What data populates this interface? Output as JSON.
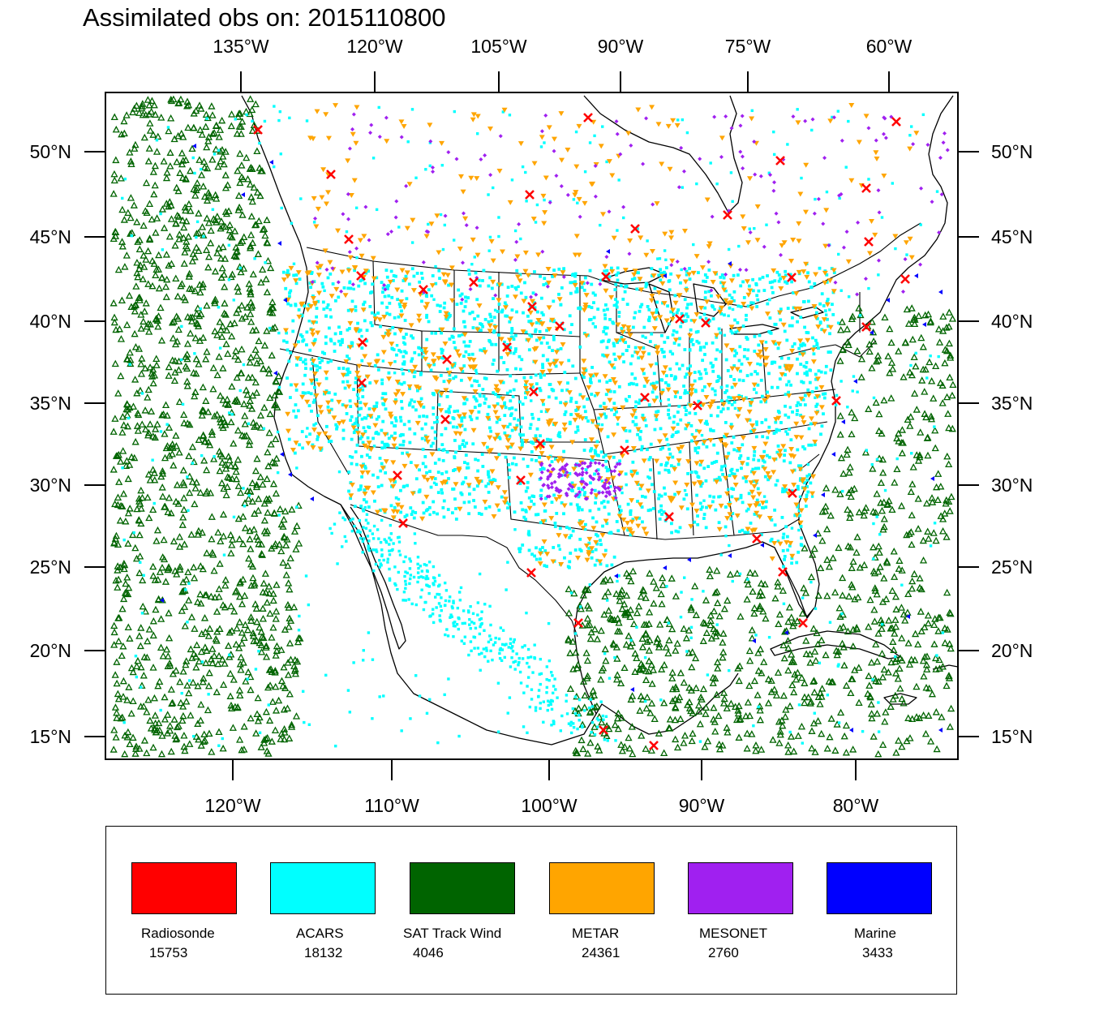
{
  "title": "Assimilated obs on: 2015110800",
  "axes": {
    "top_lon_labels": [
      "135°W",
      "120°W",
      "105°W",
      "90°W",
      "75°W",
      "60°W"
    ],
    "bottom_lon_labels": [
      "120°W",
      "110°W",
      "100°W",
      "90°W",
      "80°W"
    ],
    "lat_labels": [
      "50°N",
      "45°N",
      "40°N",
      "35°N",
      "30°N",
      "25°N",
      "20°N",
      "15°N"
    ]
  },
  "legend": [
    {
      "name": "Radiosonde",
      "count": "15753",
      "color": "#ff0000"
    },
    {
      "name": "ACARS",
      "count": "18132",
      "color": "#00ffff"
    },
    {
      "name": "SAT Track Wind",
      "count": "4046",
      "color": "#006400"
    },
    {
      "name": "METAR",
      "count": "24361",
      "color": "#ffa500"
    },
    {
      "name": "MESONET",
      "count": "2760",
      "color": "#a020f0"
    },
    {
      "name": "Marine",
      "count": "3433",
      "color": "#0000ff"
    }
  ],
  "map": {
    "projection": "Lambert conformal (continental US + Gulf of Mexico + Caribbean)",
    "lat_range": [
      14,
      52
    ],
    "lon_range": [
      -127,
      -74
    ],
    "markers": {
      "Radiosonde": "red cross",
      "ACARS": "cyan dot",
      "SAT Track Wind": "green open triangle",
      "METAR": "orange inverted triangle",
      "MESONET": "purple diamond",
      "Marine": "blue left triangle"
    }
  }
}
